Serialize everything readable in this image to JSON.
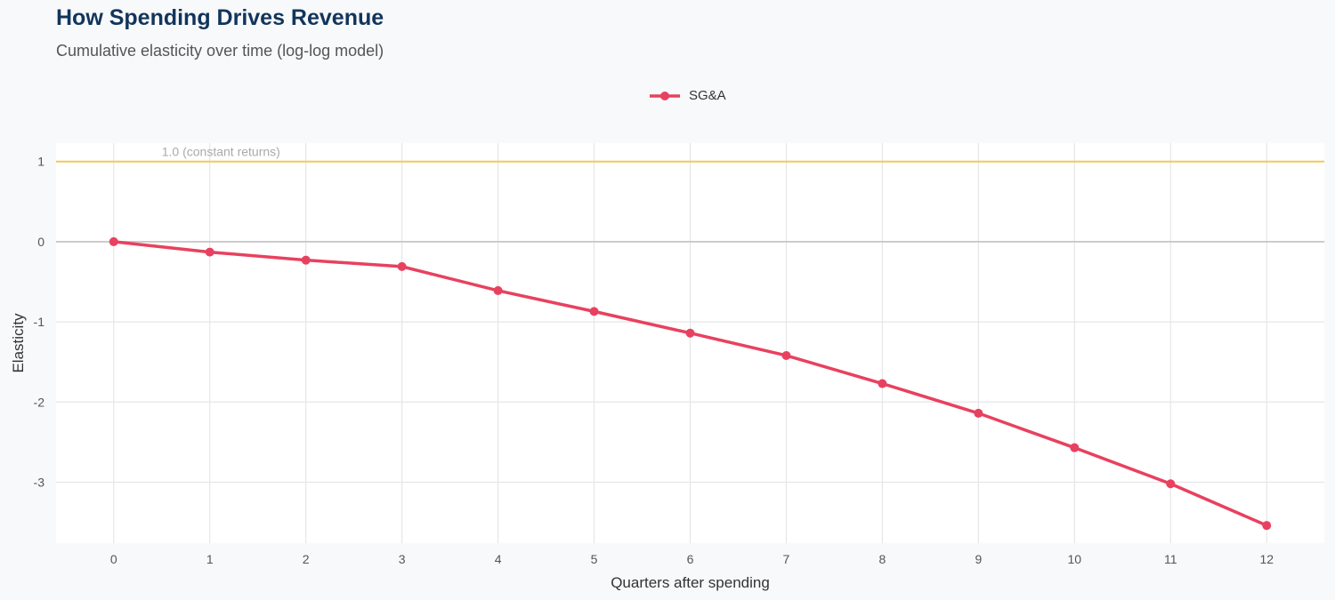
{
  "title": "How Spending Drives Revenue",
  "subtitle": "Cumulative elasticity over time (log-log model)",
  "colors": {
    "series": "#e8415f",
    "reference": "#f5c75a",
    "title": "#12355b"
  },
  "chart_data": {
    "type": "line",
    "title": "How Spending Drives Revenue",
    "subtitle": "Cumulative elasticity over time (log-log model)",
    "xlabel": "Quarters after spending",
    "ylabel": "Elasticity",
    "x": [
      0,
      1,
      2,
      3,
      4,
      5,
      6,
      7,
      8,
      9,
      10,
      11,
      12
    ],
    "series": [
      {
        "name": "SG&A",
        "color": "#e8415f",
        "values": [
          0,
          -0.13,
          -0.23,
          -0.31,
          -0.61,
          -0.87,
          -1.14,
          -1.42,
          -1.77,
          -2.14,
          -2.57,
          -3.02,
          -3.54
        ]
      }
    ],
    "xlim": [
      -0.6,
      12.6
    ],
    "ylim": [
      -3.76,
      1.23
    ],
    "xticks": [
      "0",
      "1",
      "2",
      "3",
      "4",
      "5",
      "6",
      "7",
      "8",
      "9",
      "10",
      "11",
      "12"
    ],
    "yticks": [
      {
        "v": 1,
        "label": "1"
      },
      {
        "v": 0,
        "label": "0"
      },
      {
        "v": -1,
        "label": "-1"
      },
      {
        "v": -2,
        "label": "-2"
      },
      {
        "v": -3,
        "label": "-3"
      }
    ],
    "reference_line": {
      "y": 1,
      "label": "1.0 (constant returns)",
      "color": "#f5c75a"
    },
    "zero_line": true,
    "grid": true,
    "legend": "top-center"
  }
}
